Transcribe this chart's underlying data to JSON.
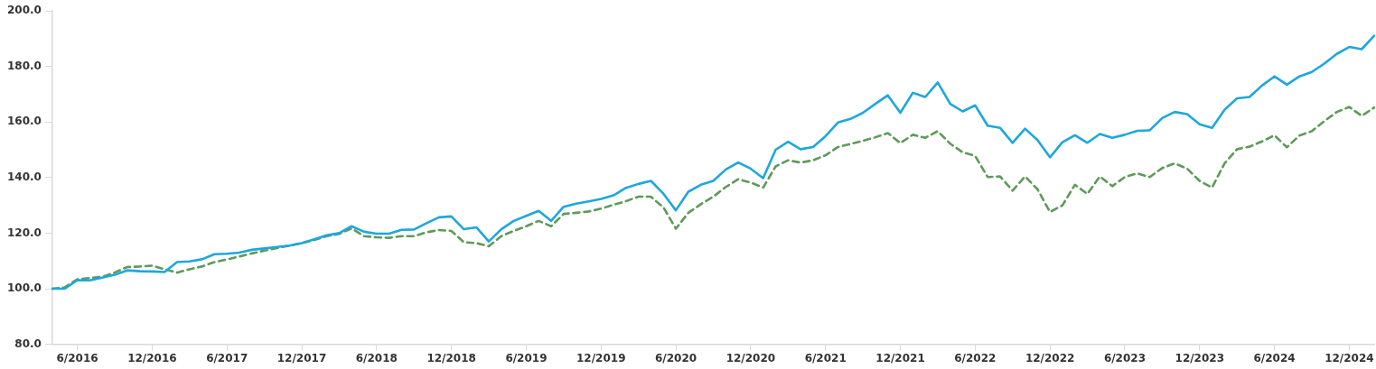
{
  "chart_data": {
    "type": "line",
    "categories": [
      null,
      null,
      "6/2016",
      null,
      null,
      null,
      null,
      null,
      "12/2016",
      null,
      null,
      null,
      null,
      null,
      "6/2017",
      null,
      null,
      null,
      null,
      null,
      "12/2017",
      null,
      null,
      null,
      null,
      null,
      "6/2018",
      null,
      null,
      null,
      null,
      null,
      "12/2018",
      null,
      null,
      null,
      null,
      null,
      "6/2019",
      null,
      null,
      null,
      null,
      null,
      "12/2019",
      null,
      null,
      null,
      null,
      null,
      "6/2020",
      null,
      null,
      null,
      null,
      null,
      "12/2020",
      null,
      null,
      null,
      null,
      null,
      "6/2021",
      null,
      null,
      null,
      null,
      null,
      "12/2021",
      null,
      null,
      null,
      null,
      null,
      "6/2022",
      null,
      null,
      null,
      null,
      null,
      "12/2022",
      null,
      null,
      null,
      null,
      null,
      "6/2023",
      null,
      null,
      null,
      null,
      null,
      "12/2023",
      null,
      null,
      null,
      null,
      null,
      "6/2024",
      null,
      null,
      null,
      null,
      null,
      "12/2024",
      null,
      null
    ],
    "series": [
      {
        "color": "#1ea7dd",
        "line_style": "solid",
        "values": [
          100.0,
          100.0,
          103.1,
          103.0,
          104.0,
          105.0,
          106.6,
          106.3,
          106.2,
          106.0,
          109.6,
          109.8,
          110.6,
          112.4,
          112.6,
          113.0,
          114.0,
          114.5,
          115.0,
          115.5,
          116.4,
          117.8,
          119.2,
          120.0,
          122.5,
          120.5,
          119.8,
          119.8,
          121.2,
          121.3,
          123.6,
          125.7,
          126.0,
          121.4,
          122.1,
          117.0,
          121.4,
          124.4,
          126.2,
          128.0,
          124.4,
          129.5,
          130.6,
          131.4,
          132.3,
          133.6,
          136.3,
          137.7,
          138.8,
          134.2,
          128.2,
          134.9,
          137.4,
          138.8,
          142.9,
          145.4,
          143.2,
          139.8,
          150.0,
          152.9,
          150.2,
          151.0,
          154.9,
          159.8,
          161.1,
          163.3,
          166.5,
          169.6,
          163.3,
          170.5,
          169.0,
          174.2,
          166.5,
          163.8,
          166.0,
          158.7,
          157.9,
          152.5,
          157.6,
          153.5,
          147.3,
          152.7,
          155.2,
          152.5,
          155.7,
          154.3,
          155.4,
          156.8,
          157.0,
          161.4,
          163.6,
          162.8,
          159.2,
          157.9,
          164.4,
          168.5,
          169.0,
          173.1,
          176.4,
          173.4,
          176.4,
          178.0,
          181.0,
          184.5,
          187.0,
          186.2,
          191.0
        ]
      },
      {
        "color": "#5f9a5a",
        "line_style": "dashed",
        "values": [
          100.0,
          100.5,
          103.4,
          103.8,
          104.3,
          105.8,
          107.8,
          108.0,
          108.3,
          107.0,
          105.8,
          107.0,
          108.0,
          109.6,
          110.5,
          111.6,
          112.7,
          113.7,
          114.6,
          115.5,
          116.4,
          117.5,
          118.9,
          119.7,
          121.7,
          118.9,
          118.5,
          118.3,
          118.9,
          118.9,
          120.3,
          121.1,
          120.8,
          116.7,
          116.4,
          115.3,
          118.9,
          120.8,
          122.5,
          124.4,
          122.5,
          126.9,
          127.3,
          127.8,
          128.8,
          130.2,
          131.5,
          133.1,
          133.1,
          129.3,
          121.6,
          127.3,
          130.4,
          133.1,
          136.6,
          139.4,
          138.2,
          136.4,
          144.0,
          146.2,
          145.4,
          146.2,
          148.0,
          151.0,
          152.1,
          153.2,
          154.5,
          156.0,
          152.4,
          155.4,
          154.3,
          156.7,
          152.2,
          149.1,
          147.8,
          140.2,
          140.4,
          135.3,
          140.4,
          135.8,
          127.6,
          130.0,
          137.4,
          134.1,
          140.4,
          136.9,
          140.2,
          141.5,
          140.2,
          143.4,
          145.1,
          143.2,
          138.8,
          136.4,
          145.1,
          150.2,
          151.1,
          153.0,
          155.2,
          150.9,
          155.1,
          156.7,
          160.3,
          163.6,
          165.4,
          162.2,
          165.2
        ]
      }
    ],
    "ylim": [
      80,
      200
    ],
    "yticks": [
      {
        "value": 80,
        "label": "80.0"
      },
      {
        "value": 100,
        "label": "100.0"
      },
      {
        "value": 120,
        "label": "120.0"
      },
      {
        "value": 140,
        "label": "140.0"
      },
      {
        "value": 160,
        "label": "160.0"
      },
      {
        "value": 180,
        "label": "180.0"
      },
      {
        "value": 200,
        "label": "200.0"
      }
    ],
    "marker": "none"
  }
}
